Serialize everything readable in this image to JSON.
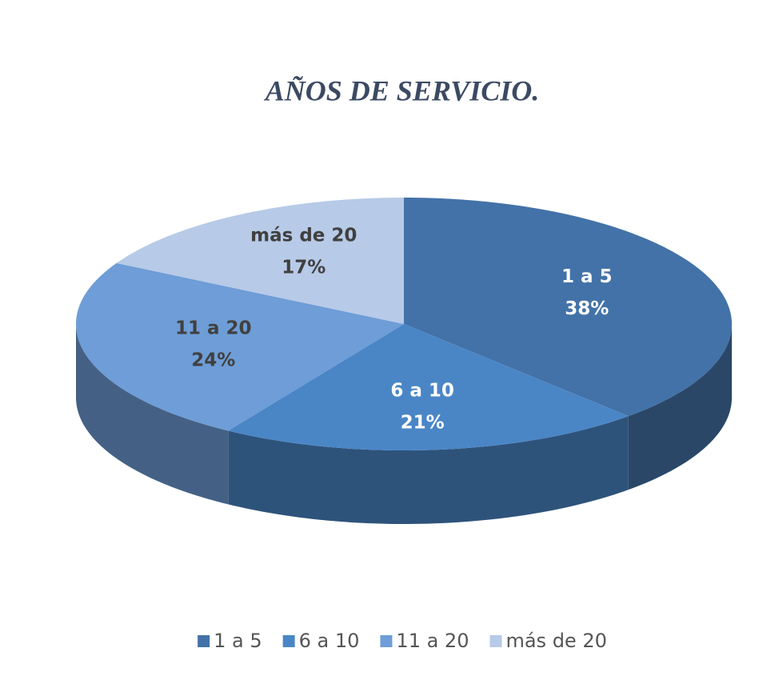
{
  "chart_data": {
    "type": "pie",
    "title": "AÑOS DE SERVICIO.",
    "categories": [
      "1 a 5",
      "6 a 10",
      "11 a 20",
      "más de 20"
    ],
    "values": [
      38,
      21,
      24,
      17
    ],
    "value_labels": [
      "38%",
      "21%",
      "24%",
      "17%"
    ],
    "colors": [
      "#4372a8",
      "#4a86c6",
      "#6e9dd7",
      "#b7cae7"
    ],
    "legend": "bottom"
  }
}
